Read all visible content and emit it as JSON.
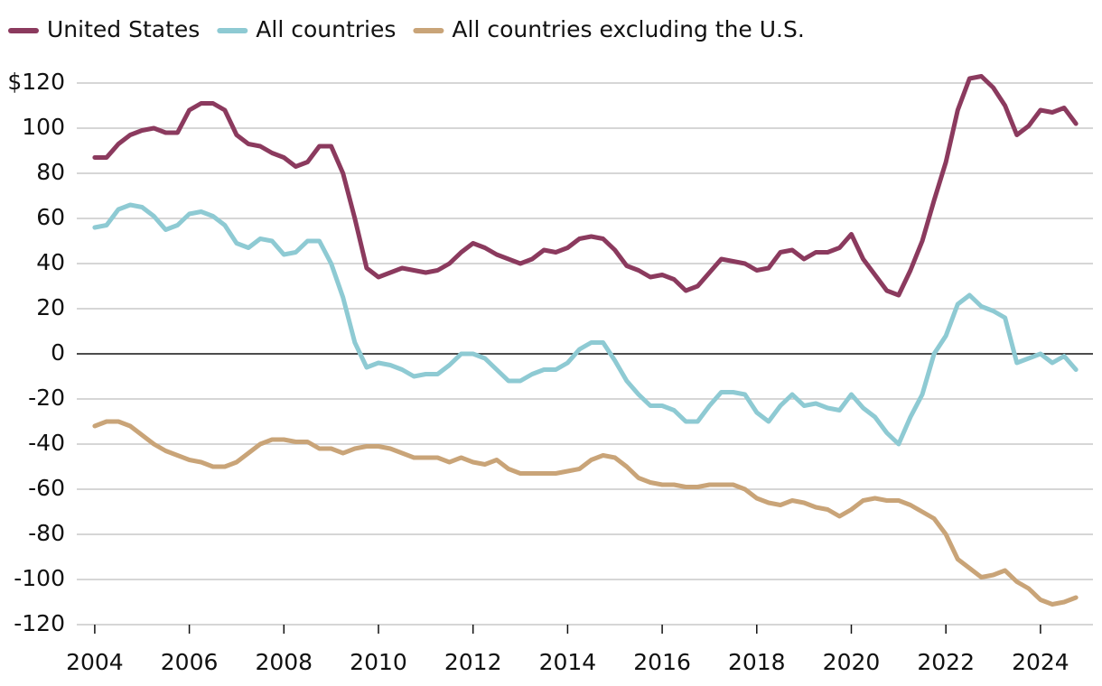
{
  "chart_data": {
    "type": "line",
    "x": [
      2004,
      2004.25,
      2004.5,
      2004.75,
      2005,
      2005.25,
      2005.5,
      2005.75,
      2006,
      2006.25,
      2006.5,
      2006.75,
      2007,
      2007.25,
      2007.5,
      2007.75,
      2008,
      2008.25,
      2008.5,
      2008.75,
      2009,
      2009.25,
      2009.5,
      2009.75,
      2010,
      2010.25,
      2010.5,
      2010.75,
      2011,
      2011.25,
      2011.5,
      2011.75,
      2012,
      2012.25,
      2012.5,
      2012.75,
      2013,
      2013.25,
      2013.5,
      2013.75,
      2014,
      2014.25,
      2014.5,
      2014.75,
      2015,
      2015.25,
      2015.5,
      2015.75,
      2016,
      2016.25,
      2016.5,
      2016.75,
      2017,
      2017.25,
      2017.5,
      2017.75,
      2018,
      2018.25,
      2018.5,
      2018.75,
      2019,
      2019.25,
      2019.5,
      2019.75,
      2020,
      2020.25,
      2020.5,
      2020.75,
      2021,
      2021.25,
      2021.5,
      2021.75,
      2022,
      2022.25,
      2022.5,
      2022.75,
      2023,
      2023.25,
      2023.5,
      2023.75,
      2024,
      2024.25,
      2024.5,
      2024.75
    ],
    "series": [
      {
        "name": "United States",
        "color": "#8b3a5e",
        "values": [
          87,
          87,
          93,
          97,
          99,
          100,
          98,
          98,
          108,
          111,
          111,
          108,
          97,
          93,
          92,
          89,
          87,
          83,
          85,
          92,
          92,
          80,
          60,
          38,
          34,
          36,
          38,
          37,
          36,
          37,
          40,
          45,
          49,
          47,
          44,
          42,
          40,
          42,
          46,
          45,
          47,
          51,
          52,
          51,
          46,
          39,
          37,
          34,
          35,
          33,
          28,
          30,
          36,
          42,
          41,
          40,
          37,
          38,
          45,
          46,
          42,
          45,
          45,
          47,
          53,
          42,
          35,
          28,
          26,
          37,
          50,
          68,
          85,
          108,
          122,
          123,
          118,
          110,
          97,
          101,
          108,
          107,
          109,
          102
        ]
      },
      {
        "name": "All countries",
        "color": "#8ecad3",
        "values": [
          56,
          57,
          64,
          66,
          65,
          61,
          55,
          57,
          62,
          63,
          61,
          57,
          49,
          47,
          51,
          50,
          44,
          45,
          50,
          50,
          40,
          25,
          5,
          -6,
          -4,
          -5,
          -7,
          -10,
          -9,
          -9,
          -5,
          0,
          0,
          -2,
          -7,
          -12,
          -12,
          -9,
          -7,
          -7,
          -4,
          2,
          5,
          5,
          -3,
          -12,
          -18,
          -23,
          -23,
          -25,
          -30,
          -30,
          -23,
          -17,
          -17,
          -18,
          -26,
          -30,
          -23,
          -18,
          -23,
          -22,
          -24,
          -25,
          -18,
          -24,
          -28,
          -35,
          -40,
          -28,
          -18,
          0,
          8,
          22,
          26,
          21,
          19,
          16,
          -4,
          -2,
          0,
          -4,
          -1,
          -7
        ]
      },
      {
        "name": "All countries excluding the U.S.",
        "color": "#c9a478",
        "values": [
          -32,
          -30,
          -30,
          -32,
          -36,
          -40,
          -43,
          -45,
          -47,
          -48,
          -50,
          -50,
          -48,
          -44,
          -40,
          -38,
          -38,
          -39,
          -39,
          -42,
          -42,
          -44,
          -42,
          -41,
          -41,
          -42,
          -44,
          -46,
          -46,
          -46,
          -48,
          -46,
          -48,
          -49,
          -47,
          -51,
          -53,
          -53,
          -53,
          -53,
          -52,
          -51,
          -47,
          -45,
          -46,
          -50,
          -55,
          -57,
          -58,
          -58,
          -59,
          -59,
          -58,
          -58,
          -58,
          -60,
          -64,
          -66,
          -67,
          -65,
          -66,
          -68,
          -69,
          -72,
          -69,
          -65,
          -64,
          -65,
          -65,
          -67,
          -70,
          -73,
          -80,
          -91,
          -95,
          -99,
          -98,
          -96,
          -101,
          -104,
          -109,
          -111,
          -110,
          -108
        ]
      }
    ],
    "xlim": [
      2003.62,
      2025.11
    ],
    "xticks": [
      2004,
      2006,
      2008,
      2010,
      2012,
      2014,
      2016,
      2018,
      2020,
      2022,
      2024
    ],
    "ylim": [
      -120,
      120
    ],
    "yticks": [
      {
        "value": 120,
        "label": "$120"
      },
      100,
      80,
      60,
      40,
      20,
      0,
      -20,
      -40,
      -60,
      -80,
      -100,
      -120
    ],
    "grid": true,
    "legend": "top-left"
  }
}
